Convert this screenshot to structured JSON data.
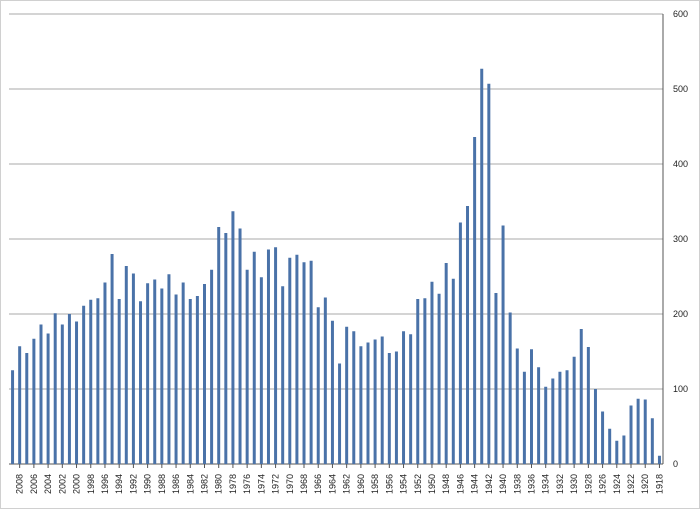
{
  "chart_data": {
    "type": "bar",
    "title": "",
    "xlabel": "",
    "ylabel": "",
    "categories": [
      2009,
      2008,
      2007,
      2006,
      2005,
      2004,
      2003,
      2002,
      2001,
      2000,
      1999,
      1998,
      1997,
      1996,
      1995,
      1994,
      1993,
      1992,
      1991,
      1990,
      1989,
      1988,
      1987,
      1986,
      1985,
      1984,
      1983,
      1982,
      1981,
      1980,
      1979,
      1978,
      1977,
      1976,
      1975,
      1974,
      1973,
      1972,
      1971,
      1970,
      1969,
      1968,
      1967,
      1966,
      1965,
      1964,
      1963,
      1962,
      1961,
      1960,
      1959,
      1958,
      1957,
      1956,
      1955,
      1954,
      1953,
      1952,
      1951,
      1950,
      1949,
      1948,
      1947,
      1946,
      1945,
      1944,
      1943,
      1942,
      1941,
      1940,
      1939,
      1938,
      1937,
      1936,
      1935,
      1934,
      1933,
      1932,
      1931,
      1930,
      1929,
      1928,
      1927,
      1926,
      1925,
      1924,
      1923,
      1922,
      1921,
      1920,
      1919,
      1918
    ],
    "x_tick_labels": [
      "2008",
      "2006",
      "2004",
      "2002",
      "2000",
      "1998",
      "1996",
      "1994",
      "1992",
      "1990",
      "1988",
      "1986",
      "1984",
      "1982",
      "1980",
      "1978",
      "1976",
      "1974",
      "1972",
      "1970",
      "1968",
      "1966",
      "1964",
      "1962",
      "1960",
      "1958",
      "1956",
      "1954",
      "1952",
      "1950",
      "1948",
      "1946",
      "1944",
      "1942",
      "1940",
      "1938",
      "1936",
      "1934",
      "1932",
      "1930",
      "1928",
      "1926",
      "1924",
      "1922",
      "1920",
      "1918"
    ],
    "values": [
      125,
      157,
      148,
      167,
      186,
      174,
      201,
      186,
      200,
      190,
      211,
      219,
      221,
      242,
      280,
      220,
      264,
      254,
      217,
      241,
      246,
      234,
      253,
      226,
      242,
      220,
      224,
      240,
      259,
      316,
      308,
      337,
      314,
      259,
      283,
      249,
      286,
      289,
      237,
      275,
      279,
      269,
      271,
      209,
      222,
      191,
      134,
      183,
      177,
      157,
      162,
      166,
      170,
      148,
      150,
      177,
      173,
      220,
      221,
      243,
      227,
      268,
      247,
      322,
      344,
      436,
      527,
      507,
      228,
      318,
      202,
      154,
      123,
      153,
      129,
      103,
      114,
      123,
      125,
      143,
      180,
      156,
      100,
      70,
      47,
      31,
      38,
      78,
      87,
      86,
      61,
      11
    ],
    "ylim": [
      0,
      600
    ],
    "y_ticks": [
      0,
      100,
      200,
      300,
      400,
      500,
      600
    ],
    "y_axis_side": "right",
    "grid": true,
    "bar_color": "#4a72a8"
  }
}
